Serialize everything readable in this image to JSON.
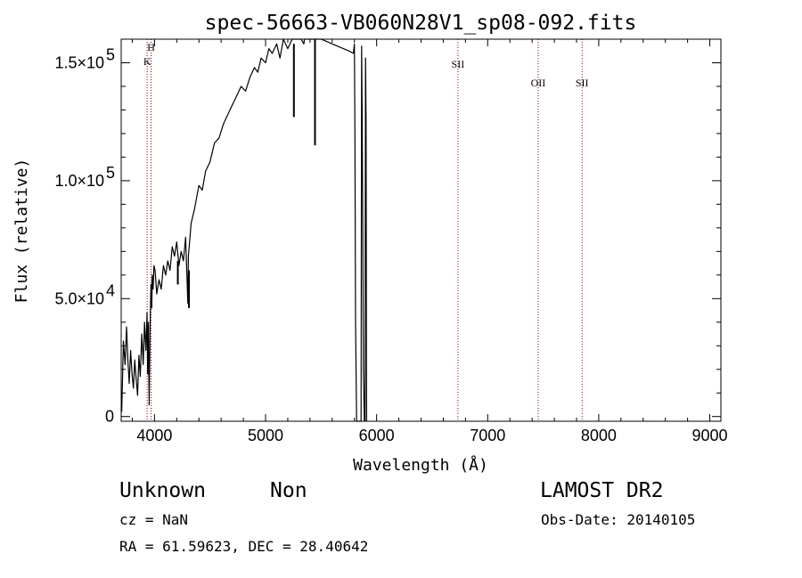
{
  "chart_data": {
    "type": "line",
    "title": "spec-56663-VB060N28V1_sp08-092.fits",
    "xlabel": "Wavelength (Å)",
    "ylabel": "Flux (relative)",
    "xlim": [
      3700,
      9100
    ],
    "ylim": [
      -2000,
      160000
    ],
    "x_ticks": [
      4000,
      5000,
      6000,
      7000,
      8000,
      9000
    ],
    "x_tick_labels": [
      "4000",
      "5000",
      "6000",
      "7000",
      "8000",
      "9000"
    ],
    "y_ticks": [
      0,
      50000,
      100000,
      150000
    ],
    "y_tick_labels": [
      {
        "mant": "0",
        "exp": ""
      },
      {
        "mant": "5.0×10",
        "exp": "4"
      },
      {
        "mant": "1.0×10",
        "exp": "5"
      },
      {
        "mant": "1.5×10",
        "exp": "5"
      }
    ],
    "series": [
      {
        "x": [
          3705,
          3720,
          3735,
          3748,
          3760,
          3772,
          3785,
          3798,
          3810,
          3822,
          3835,
          3848,
          3860,
          3872,
          3885,
          3898,
          3910,
          3922,
          3933,
          3938,
          3945,
          3952,
          3960,
          3968,
          3975,
          3980,
          3987,
          3995,
          4005,
          4020,
          4040,
          4060,
          4080,
          4100,
          4120,
          4140,
          4160,
          4180,
          4200,
          4220,
          4240,
          4260,
          4280,
          4300,
          4305,
          4312,
          4330,
          4360,
          4400,
          4430,
          4460,
          4500,
          4540,
          4580,
          4620,
          4660,
          4700,
          4740,
          4780,
          4820,
          4860,
          4900,
          4930,
          4960,
          5000,
          5030,
          5060,
          5100,
          5130,
          5160,
          5200,
          5240,
          5280,
          5320,
          5345,
          5350,
          5355,
          5360,
          5400,
          5450,
          5500,
          5550,
          5600,
          5650,
          5700,
          5750,
          5790,
          5800,
          5805,
          5810,
          5820,
          5830,
          5840,
          5850,
          5860,
          5865,
          5870,
          5875,
          5880,
          5890,
          5895,
          5900,
          5905,
          5910
        ],
        "y": [
          2000,
          32000,
          22000,
          38000,
          24000,
          14000,
          28000,
          18000,
          12000,
          24000,
          16000,
          9000,
          26000,
          17000,
          35000,
          22000,
          40000,
          28000,
          44000,
          18000,
          40000,
          5000,
          38000,
          56000,
          46000,
          60000,
          54000,
          64000,
          62000,
          52000,
          58000,
          54000,
          64000,
          60000,
          66000,
          62000,
          72000,
          68000,
          74000,
          64000,
          70000,
          66000,
          76000,
          48000,
          68000,
          72000,
          82000,
          88000,
          98000,
          96000,
          104000,
          108000,
          116000,
          118000,
          124000,
          128000,
          132000,
          136000,
          140000,
          138000,
          144000,
          148000,
          146000,
          152000,
          150000,
          156000,
          154000,
          158000,
          152000,
          160000,
          156000,
          162000,
          160000,
          164000,
          158000,
          162000,
          160000,
          163000,
          162000,
          161000,
          160000,
          159000,
          158000,
          157000,
          156000,
          155000,
          154000,
          158000,
          120000,
          40000,
          -2000,
          -2000,
          -2000,
          -2000,
          -2000,
          157000,
          130000,
          80000,
          20000,
          -2000,
          -2000,
          152000,
          126000,
          -2000
        ]
      }
    ],
    "spikes": [
      {
        "x": 5255,
        "y": 158000,
        "y_low": 127000
      },
      {
        "x": 5445,
        "y": 162000,
        "y_low": 115000
      },
      {
        "x": 4210,
        "y": 66000,
        "y_low": 56000
      },
      {
        "x": 4310,
        "y": 62000,
        "y_low": 46000
      }
    ],
    "lines": [
      {
        "label": "K",
        "x": 3934,
        "label_y": 149000
      },
      {
        "label": "H",
        "x": 3969,
        "label_y": 155000
      },
      {
        "label": "SII",
        "x": 6732,
        "label_y": 148000
      },
      {
        "label": "OII",
        "x": 7455,
        "label_y": 140000
      },
      {
        "label": "SII",
        "x": 7850,
        "label_y": 140000
      }
    ],
    "line_color": "#8b0000",
    "legend": "none",
    "grid": false
  },
  "info": {
    "class_name": "Unknown",
    "subclass": "Non",
    "survey": "LAMOST DR2",
    "cz": "cz = NaN",
    "obs_date": "Obs-Date: 20140105",
    "coords": "RA =  61.59623, DEC =  28.40642"
  }
}
